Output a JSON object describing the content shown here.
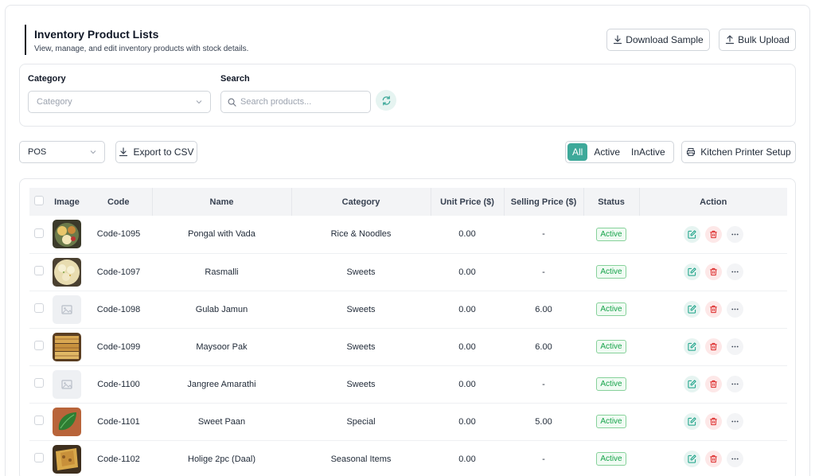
{
  "header": {
    "title": "Inventory Product Lists",
    "subtitle": "View, manage, and edit inventory products with stock details."
  },
  "toolbar": {
    "download_sample": "Download Sample",
    "bulk_upload": "Bulk Upload"
  },
  "filters": {
    "category_label": "Category",
    "category_placeholder": "Category",
    "search_label": "Search",
    "search_placeholder": "Search products..."
  },
  "controls": {
    "channel_value": "POS",
    "export_csv": "Export to CSV",
    "status_toggles": [
      "All",
      "Active",
      "InActive"
    ],
    "active_toggle": "All",
    "kitchen_printer": "Kitchen Printer Setup"
  },
  "table": {
    "columns": [
      "Image",
      "Code",
      "Name",
      "Category",
      "Unit Price ($)",
      "Selling Price ($)",
      "Status",
      "Action"
    ],
    "rows": [
      {
        "code": "Code-1095",
        "name": "Pongal with Vada",
        "category": "Rice & Noodles",
        "unit_price": "0.00",
        "selling_price": "-",
        "status": "Active",
        "image": "pongal"
      },
      {
        "code": "Code-1097",
        "name": "Rasmalli",
        "category": "Sweets",
        "unit_price": "0.00",
        "selling_price": "-",
        "status": "Active",
        "image": "rasmalli"
      },
      {
        "code": "Code-1098",
        "name": "Gulab Jamun",
        "category": "Sweets",
        "unit_price": "0.00",
        "selling_price": "6.00",
        "status": "Active",
        "image": "placeholder"
      },
      {
        "code": "Code-1099",
        "name": "Maysoor Pak",
        "category": "Sweets",
        "unit_price": "0.00",
        "selling_price": "6.00",
        "status": "Active",
        "image": "maysoor"
      },
      {
        "code": "Code-1100",
        "name": "Jangree Amarathi",
        "category": "Sweets",
        "unit_price": "0.00",
        "selling_price": "-",
        "status": "Active",
        "image": "placeholder"
      },
      {
        "code": "Code-1101",
        "name": "Sweet Paan",
        "category": "Special",
        "unit_price": "0.00",
        "selling_price": "5.00",
        "status": "Active",
        "image": "paan"
      },
      {
        "code": "Code-1102",
        "name": "Holige 2pc (Daal)",
        "category": "Seasonal Items",
        "unit_price": "0.00",
        "selling_price": "-",
        "status": "Active",
        "image": "holige"
      }
    ]
  },
  "colors": {
    "accent": "#3ea99a",
    "status_green": "#16a34a",
    "danger": "#dc2626"
  }
}
